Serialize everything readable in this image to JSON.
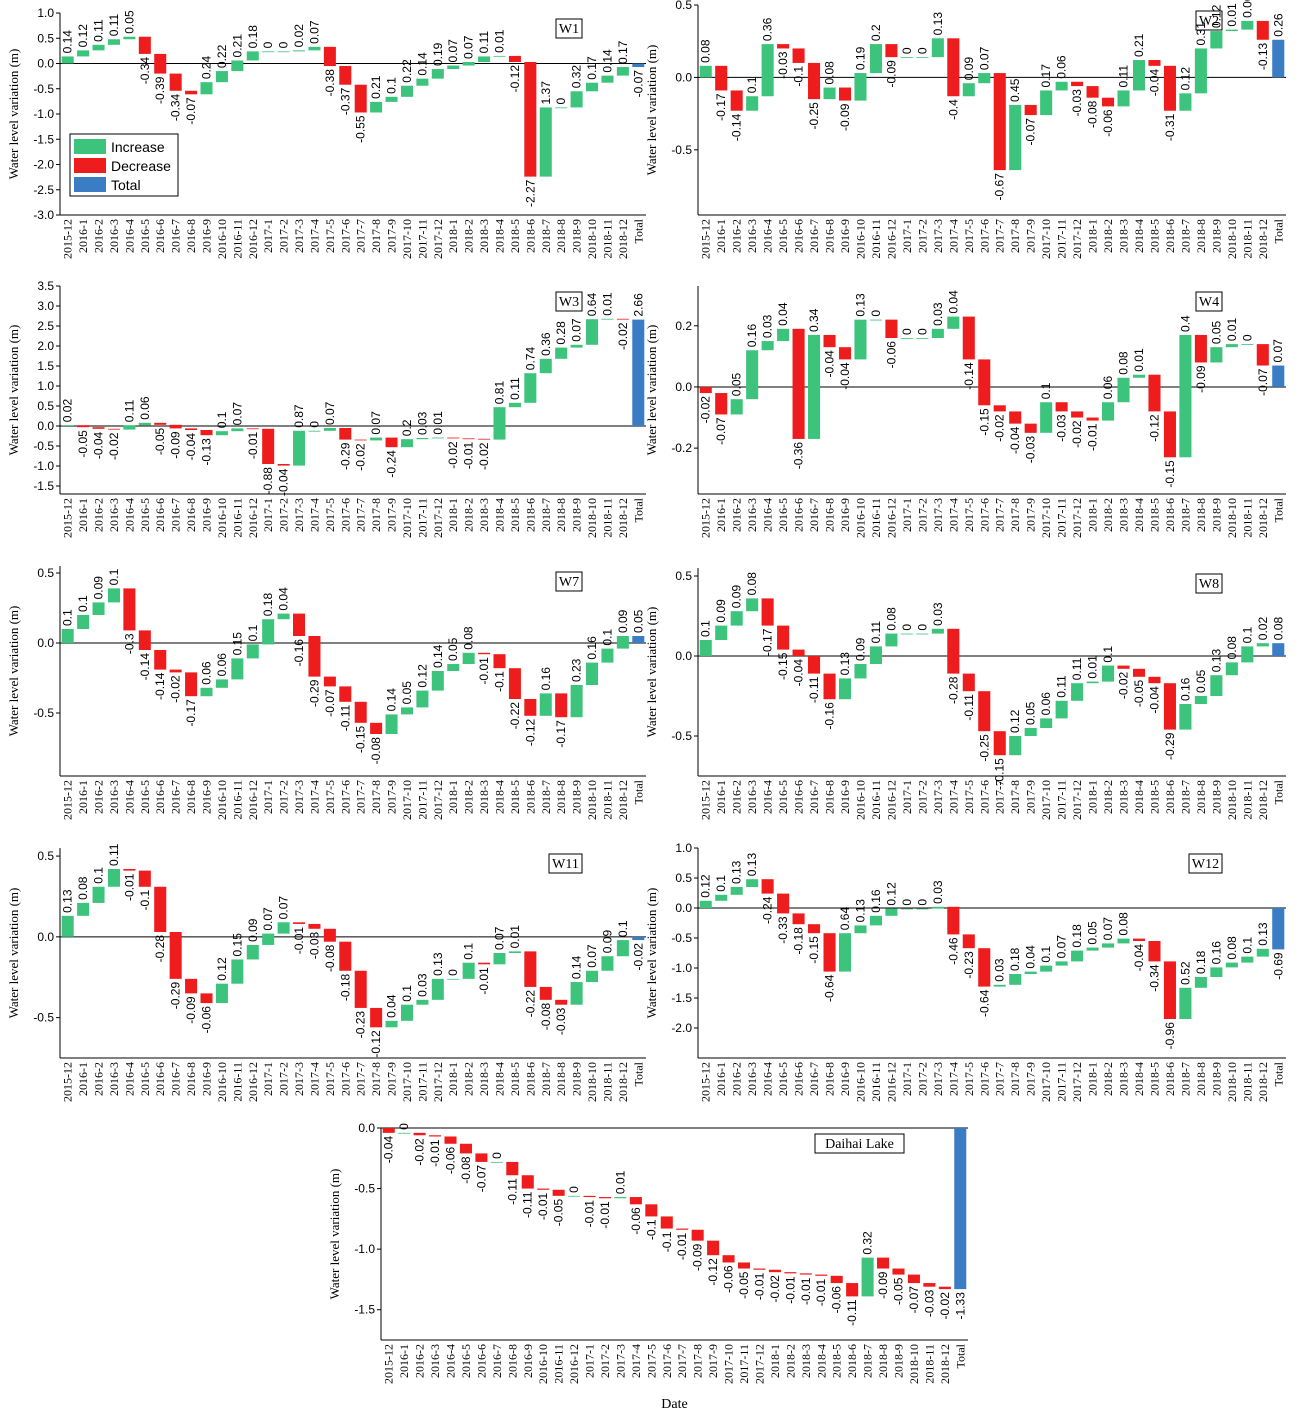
{
  "colors": {
    "increase": "#3cc47c",
    "decrease": "#ee1c1c",
    "total": "#3a7dc4",
    "zero_line": "#000000",
    "connector": "#bbbbbb"
  },
  "legend": {
    "increase": "Increase",
    "decrease": "Decrease",
    "total": "Total"
  },
  "chart_data": [
    {
      "type": "waterfall",
      "title": "W1",
      "ylabel": "Water level variation (m)",
      "xlabel": "",
      "ylim": [
        -3.0,
        1.0
      ],
      "yticks": [
        "1.0",
        "0.5",
        "0.0",
        "-0.5",
        "-1.0",
        "-1.5",
        "-2.0",
        "-2.5",
        "-3.0"
      ],
      "legend_position": "bottom-left",
      "categories": [
        "2015-12",
        "2016-1",
        "2016-2",
        "2016-3",
        "2016-4",
        "2016-5",
        "2016-6",
        "2016-7",
        "2016-8",
        "2016-9",
        "2016-10",
        "2016-11",
        "2016-12",
        "2017-1",
        "2017-2",
        "2017-3",
        "2017-4",
        "2017-5",
        "2017-6",
        "2017-7",
        "2017-8",
        "2017-9",
        "2017-10",
        "2017-11",
        "2017-12",
        "2018-1",
        "2018-2",
        "2018-3",
        "2018-4",
        "2018-5",
        "2018-6",
        "2018-7",
        "2018-8",
        "2018-9",
        "2018-10",
        "2018-11",
        "2018-12",
        "Total"
      ],
      "values": [
        0.14,
        0.12,
        0.11,
        0.11,
        0.05,
        -0.34,
        -0.39,
        -0.34,
        -0.07,
        0.24,
        0.22,
        0.21,
        0.18,
        0,
        0,
        0.02,
        0.07,
        -0.38,
        -0.37,
        -0.55,
        0.21,
        0.1,
        0.22,
        0.14,
        0.19,
        0.07,
        0.07,
        0.11,
        0.01,
        -0.12,
        -2.27,
        1.37,
        0,
        0.32,
        0.17,
        0.14,
        0.17,
        -0.07
      ]
    },
    {
      "type": "waterfall",
      "title": "W2",
      "ylabel": "Water level variation (m)",
      "xlabel": "",
      "ylim": [
        -0.95,
        0.5
      ],
      "yticks": [
        "0.5",
        "0.0",
        "-0.5"
      ],
      "categories": [
        "2015-12",
        "2016-1",
        "2016-2",
        "2016-3",
        "2016-4",
        "2016-5",
        "2016-6",
        "2016-7",
        "2016-8",
        "2016-9",
        "2016-10",
        "2016-11",
        "2016-12",
        "2017-1",
        "2017-2",
        "2017-3",
        "2017-4",
        "2017-5",
        "2017-6",
        "2017-7",
        "2017-8",
        "2017-9",
        "2017-10",
        "2017-11",
        "2017-12",
        "2018-1",
        "2018-2",
        "2018-3",
        "2018-4",
        "2018-5",
        "2018-6",
        "2018-7",
        "2018-8",
        "2018-9",
        "2018-10",
        "2018-11",
        "2018-12",
        "Total"
      ],
      "values": [
        0.08,
        -0.17,
        -0.14,
        0.1,
        0.36,
        -0.03,
        -0.1,
        -0.25,
        0.08,
        -0.09,
        0.19,
        0.2,
        -0.09,
        0,
        0,
        0.13,
        -0.4,
        0.09,
        0.07,
        -0.67,
        0.45,
        -0.07,
        0.17,
        0.06,
        -0.03,
        -0.08,
        -0.06,
        0.11,
        0.21,
        -0.04,
        -0.31,
        0.12,
        0.31,
        0.12,
        0.01,
        0.06,
        -0.13,
        0.26
      ]
    },
    {
      "type": "waterfall",
      "title": "W3",
      "ylabel": "Water level variation (m)",
      "xlabel": "",
      "ylim": [
        -1.7,
        3.5
      ],
      "yticks": [
        "3.5",
        "3.0",
        "2.5",
        "2.0",
        "1.5",
        "1.0",
        "0.5",
        "0.0",
        "-0.5",
        "-1.0",
        "-1.5"
      ],
      "categories": [
        "2015-12",
        "2016-1",
        "2016-2",
        "2016-3",
        "2016-4",
        "2016-5",
        "2016-6",
        "2016-7",
        "2016-8",
        "2016-9",
        "2016-10",
        "2016-11",
        "2016-12",
        "2017-1",
        "2017-2",
        "2017-3",
        "2017-4",
        "2017-5",
        "2017-6",
        "2017-7",
        "2017-8",
        "2017-9",
        "2017-10",
        "2017-11",
        "2017-12",
        "2018-1",
        "2018-2",
        "2018-3",
        "2018-4",
        "2018-5",
        "2018-6",
        "2018-7",
        "2018-8",
        "2018-9",
        "2018-10",
        "2018-11",
        "2018-12",
        "Total"
      ],
      "values": [
        0.02,
        -0.05,
        -0.04,
        -0.02,
        0.11,
        0.06,
        -0.05,
        -0.09,
        -0.04,
        -0.13,
        0.1,
        0.07,
        -0.01,
        -0.88,
        -0.04,
        0.87,
        0,
        0.07,
        -0.29,
        -0.02,
        0.07,
        -0.24,
        0.2,
        0.03,
        0.01,
        -0.02,
        -0.01,
        -0.02,
        0.81,
        0.11,
        0.74,
        0.36,
        0.28,
        0.07,
        0.64,
        0.01,
        -0.02,
        2.66
      ]
    },
    {
      "type": "waterfall",
      "title": "W4",
      "ylabel": "Water level variation (m)",
      "xlabel": "",
      "ylim": [
        -0.35,
        0.33
      ],
      "yticks": [
        "0.2",
        "0.0",
        "-0.2"
      ],
      "categories": [
        "2015-12",
        "2016-1",
        "2016-2",
        "2016-3",
        "2016-4",
        "2016-5",
        "2016-6",
        "2016-7",
        "2016-8",
        "2016-9",
        "2016-10",
        "2016-11",
        "2016-12",
        "2017-1",
        "2017-2",
        "2017-3",
        "2017-4",
        "2017-5",
        "2017-6",
        "2017-7",
        "2017-8",
        "2017-9",
        "2017-10",
        "2017-11",
        "2017-12",
        "2018-1",
        "2018-2",
        "2018-3",
        "2018-4",
        "2018-5",
        "2018-6",
        "2018-7",
        "2018-8",
        "2018-9",
        "2018-10",
        "2018-11",
        "2018-12",
        "Total"
      ],
      "values": [
        -0.02,
        -0.07,
        0.05,
        0.16,
        0.03,
        0.04,
        -0.36,
        0.34,
        -0.04,
        -0.04,
        0.13,
        0,
        -0.06,
        0,
        0,
        0.03,
        0.04,
        -0.14,
        -0.15,
        -0.02,
        -0.04,
        -0.03,
        0.1,
        -0.03,
        -0.02,
        -0.01,
        0.06,
        0.08,
        0.01,
        -0.12,
        -0.15,
        0.4,
        -0.09,
        0.05,
        0.01,
        0,
        -0.07,
        0.07
      ]
    },
    {
      "type": "waterfall",
      "title": "W7",
      "ylabel": "Water level variation (m)",
      "xlabel": "",
      "ylim": [
        -0.95,
        0.55
      ],
      "yticks": [
        "0.5",
        "0.0",
        "-0.5"
      ],
      "categories": [
        "2015-12",
        "2016-1",
        "2016-2",
        "2016-3",
        "2016-4",
        "2016-5",
        "2016-6",
        "2016-7",
        "2016-8",
        "2016-9",
        "2016-10",
        "2016-11",
        "2016-12",
        "2017-1",
        "2017-2",
        "2017-3",
        "2017-4",
        "2017-5",
        "2017-6",
        "2017-7",
        "2017-8",
        "2017-9",
        "2017-10",
        "2017-11",
        "2017-12",
        "2018-1",
        "2018-2",
        "2018-3",
        "2018-4",
        "2018-5",
        "2018-6",
        "2018-7",
        "2018-8",
        "2018-9",
        "2018-10",
        "2018-11",
        "2018-12",
        "Total"
      ],
      "values": [
        0.1,
        0.1,
        0.09,
        0.1,
        -0.3,
        -0.14,
        -0.14,
        -0.02,
        -0.17,
        0.06,
        0.06,
        0.15,
        0.1,
        0.18,
        0.04,
        -0.16,
        -0.29,
        -0.07,
        -0.11,
        -0.15,
        -0.08,
        0.14,
        0.05,
        0.12,
        0.14,
        0.05,
        0.08,
        -0.01,
        -0.1,
        -0.22,
        -0.12,
        0.16,
        -0.17,
        0.23,
        0.16,
        0.1,
        0.09,
        0.05
      ]
    },
    {
      "type": "waterfall",
      "title": "W8",
      "ylabel": "Water level variation (m)",
      "xlabel": "",
      "ylim": [
        -0.75,
        0.55
      ],
      "yticks": [
        "0.5",
        "0.0",
        "-0.5"
      ],
      "categories": [
        "2015-12",
        "2016-1",
        "2016-2",
        "2016-3",
        "2016-4",
        "2016-5",
        "2016-6",
        "2016-7",
        "2016-8",
        "2016-9",
        "2016-10",
        "2016-11",
        "2016-12",
        "2017-1",
        "2017-2",
        "2017-3",
        "2017-4",
        "2017-5",
        "2017-6",
        "2017-7",
        "2017-8",
        "2017-9",
        "2017-10",
        "2017-11",
        "2017-12",
        "2018-1",
        "2018-2",
        "2018-3",
        "2018-4",
        "2018-5",
        "2018-6",
        "2018-7",
        "2018-8",
        "2018-9",
        "2018-10",
        "2018-11",
        "2018-12",
        "Total"
      ],
      "values": [
        0.1,
        0.09,
        0.09,
        0.08,
        -0.17,
        -0.15,
        -0.04,
        -0.11,
        -0.16,
        0.13,
        0.09,
        0.11,
        0.08,
        0,
        0,
        0.03,
        -0.28,
        -0.11,
        -0.25,
        -0.15,
        0.12,
        0.05,
        0.06,
        0.11,
        0.11,
        0.01,
        0.1,
        -0.02,
        -0.05,
        -0.04,
        -0.29,
        0.16,
        0.05,
        0.13,
        0.08,
        0.1,
        0.02,
        0.08
      ]
    },
    {
      "type": "waterfall",
      "title": "W11",
      "ylabel": "Water level variation (m)",
      "xlabel": "",
      "ylim": [
        -0.75,
        0.55
      ],
      "yticks": [
        "0.5",
        "0.0",
        "-0.5"
      ],
      "categories": [
        "2015-12",
        "2016-1",
        "2016-2",
        "2016-3",
        "2016-4",
        "2016-5",
        "2016-6",
        "2016-7",
        "2016-8",
        "2016-9",
        "2016-10",
        "2016-11",
        "2016-12",
        "2017-1",
        "2017-2",
        "2017-3",
        "2017-4",
        "2017-5",
        "2017-6",
        "2017-7",
        "2017-8",
        "2017-9",
        "2017-10",
        "2017-11",
        "2017-12",
        "2018-1",
        "2018-2",
        "2018-3",
        "2018-4",
        "2018-5",
        "2018-6",
        "2018-7",
        "2018-8",
        "2018-9",
        "2018-10",
        "2018-11",
        "2018-12",
        "Total"
      ],
      "values": [
        0.13,
        0.08,
        0.1,
        0.11,
        -0.01,
        -0.1,
        -0.28,
        -0.29,
        -0.09,
        -0.06,
        0.12,
        0.15,
        0.09,
        0.07,
        0.07,
        -0.01,
        -0.03,
        -0.08,
        -0.18,
        -0.23,
        -0.12,
        0.04,
        0.1,
        0.03,
        0.13,
        0,
        0.1,
        -0.01,
        0.07,
        0.01,
        -0.22,
        -0.08,
        -0.03,
        0.14,
        0.07,
        0.09,
        0.1,
        -0.02
      ]
    },
    {
      "type": "waterfall",
      "title": "W12",
      "ylabel": "Water level variation (m)",
      "xlabel": "",
      "ylim": [
        -2.5,
        1.0
      ],
      "yticks": [
        "1.0",
        "0.5",
        "0.0",
        "-0.5",
        "-1.0",
        "-1.5",
        "-2.0"
      ],
      "categories": [
        "2015-12",
        "2016-1",
        "2016-2",
        "2016-3",
        "2016-4",
        "2016-5",
        "2016-6",
        "2016-7",
        "2016-8",
        "2016-9",
        "2016-10",
        "2016-11",
        "2016-12",
        "2017-1",
        "2017-2",
        "2017-3",
        "2017-4",
        "2017-5",
        "2017-6",
        "2017-7",
        "2017-8",
        "2017-9",
        "2017-10",
        "2017-11",
        "2017-12",
        "2018-1",
        "2018-2",
        "2018-3",
        "2018-4",
        "2018-5",
        "2018-6",
        "2018-7",
        "2018-8",
        "2018-9",
        "2018-10",
        "2018-11",
        "2018-12",
        "Total"
      ],
      "values": [
        0.12,
        0.1,
        0.13,
        0.13,
        -0.24,
        -0.33,
        -0.18,
        -0.15,
        -0.64,
        0.64,
        0.13,
        0.16,
        0.12,
        0,
        0,
        0.03,
        -0.46,
        -0.23,
        -0.64,
        0.03,
        0.18,
        0.04,
        0.1,
        0.07,
        0.18,
        0.05,
        0.07,
        0.08,
        -0.04,
        -0.34,
        -0.96,
        0.52,
        0.18,
        0.16,
        0.08,
        0.1,
        0.13,
        -0.69
      ]
    },
    {
      "type": "waterfall",
      "title": "Daihai Lake",
      "ylabel": "Water level variation (m)",
      "xlabel": "Date",
      "ylim": [
        -1.75,
        0.0
      ],
      "yticks": [
        "0.0",
        "-0.5",
        "-1.0",
        "-1.5"
      ],
      "categories": [
        "2015-12",
        "2016-1",
        "2016-2",
        "2016-3",
        "2016-4",
        "2016-5",
        "2016-6",
        "2016-7",
        "2016-8",
        "2016-9",
        "2016-10",
        "2016-11",
        "2016-12",
        "2017-1",
        "2017-2",
        "2017-3",
        "2017-4",
        "2017-5",
        "2017-6",
        "2017-7",
        "2017-8",
        "2017-9",
        "2017-10",
        "2017-11",
        "2017-12",
        "2018-1",
        "2018-2",
        "2018-3",
        "2018-4",
        "2018-5",
        "2018-6",
        "2018-7",
        "2018-8",
        "2018-9",
        "2018-10",
        "2018-11",
        "2018-12",
        "Total"
      ],
      "values": [
        -0.04,
        0,
        -0.02,
        -0.01,
        -0.06,
        -0.08,
        -0.07,
        0,
        -0.11,
        -0.11,
        -0.01,
        -0.05,
        0,
        -0.01,
        -0.01,
        0.01,
        -0.06,
        -0.1,
        -0.1,
        -0.01,
        -0.09,
        -0.12,
        -0.06,
        -0.05,
        -0.01,
        -0.02,
        -0.01,
        -0.01,
        -0.01,
        -0.06,
        -0.11,
        0.32,
        -0.09,
        -0.05,
        -0.07,
        -0.03,
        -0.02,
        -1.33
      ]
    }
  ]
}
